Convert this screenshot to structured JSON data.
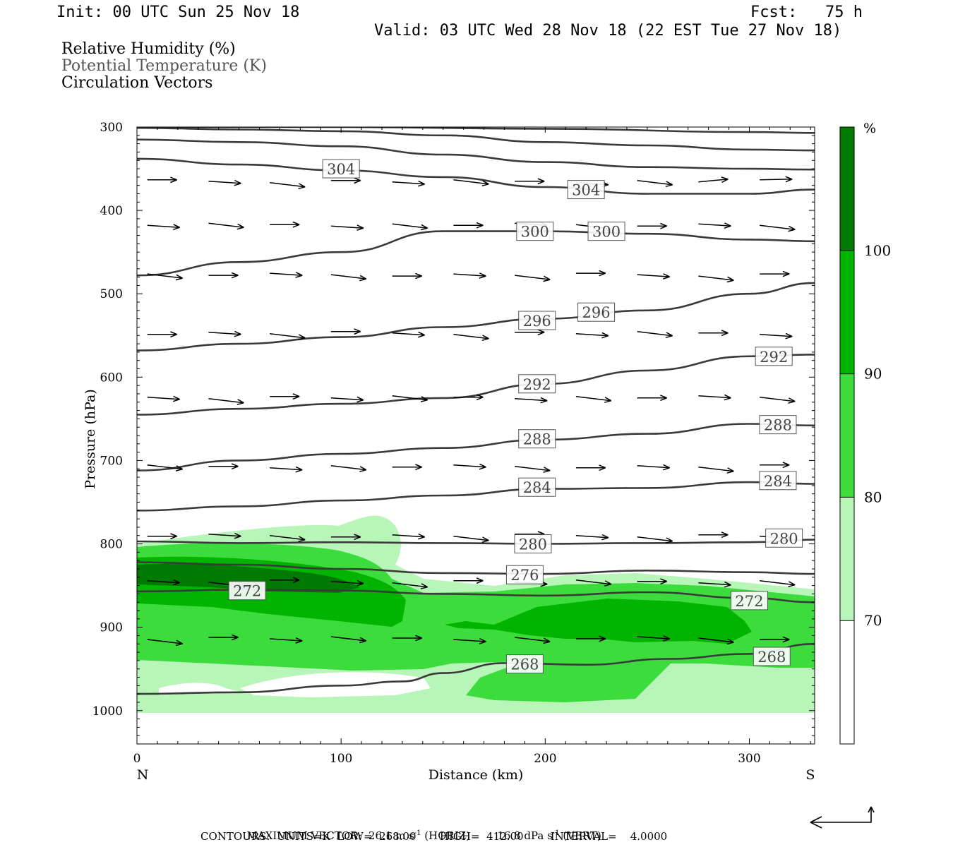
{
  "header": {
    "init": "Init: 00 UTC Sun 25 Nov 18",
    "fcst": "Fcst:   75 h",
    "valid": "Valid: 03 UTC Wed 28 Nov 18 (22 EST Tue 27 Nov 18)"
  },
  "legend": {
    "line1": "Relative Humidity (%)",
    "line2": "Potential Temperature (K)",
    "line3": "Circulation Vectors"
  },
  "chart_data": {
    "type": "cross-section",
    "xlabel": "Distance (km)",
    "ylabel": "Pressure (hPa)",
    "xlim": [
      0,
      332
    ],
    "ylim": [
      1040,
      300
    ],
    "x_ticks": [
      0,
      100,
      200,
      300
    ],
    "y_ticks": [
      300,
      400,
      500,
      600,
      700,
      800,
      900,
      1000
    ],
    "x_end_labels": {
      "left": "N",
      "right": "S"
    },
    "colorbar": {
      "unit": "%",
      "levels": [
        70,
        80,
        90,
        100
      ],
      "colors": [
        "#ffffff",
        "#b8f5b8",
        "#3ddc3d",
        "#00b400",
        "#007a00"
      ]
    },
    "theta_contours": [
      {
        "value": 268,
        "x": [
          0,
          50,
          100,
          130,
          150,
          180,
          220,
          260,
          300,
          332
        ],
        "p": [
          980,
          978,
          970,
          965,
          955,
          943,
          945,
          938,
          932,
          920
        ]
      },
      {
        "value": 272,
        "x": [
          0,
          50,
          100,
          150,
          200,
          250,
          300,
          332
        ],
        "p": [
          857,
          855,
          856,
          860,
          862,
          858,
          865,
          870
        ]
      },
      {
        "value": 276,
        "x": [
          0,
          50,
          100,
          150,
          200,
          250,
          300,
          332
        ],
        "p": [
          822,
          825,
          830,
          835,
          836,
          832,
          834,
          836
        ]
      },
      {
        "value": 280,
        "x": [
          0,
          50,
          100,
          150,
          200,
          250,
          300,
          332
        ],
        "p": [
          797,
          799,
          798,
          799,
          800,
          799,
          798,
          795
        ]
      },
      {
        "value": 284,
        "x": [
          0,
          50,
          100,
          150,
          200,
          250,
          300,
          332
        ],
        "p": [
          760,
          755,
          748,
          742,
          734,
          733,
          726,
          728
        ]
      },
      {
        "value": 288,
        "x": [
          0,
          50,
          100,
          150,
          200,
          250,
          300,
          332
        ],
        "p": [
          712,
          700,
          692,
          685,
          675,
          668,
          656,
          658
        ]
      },
      {
        "value": 292,
        "x": [
          0,
          50,
          100,
          150,
          200,
          250,
          300,
          332
        ],
        "p": [
          645,
          638,
          632,
          625,
          608,
          592,
          575,
          573
        ]
      },
      {
        "value": 296,
        "x": [
          0,
          50,
          100,
          150,
          200,
          250,
          300,
          332
        ],
        "p": [
          568,
          560,
          552,
          540,
          530,
          520,
          500,
          487
        ]
      },
      {
        "value": 300,
        "x": [
          0,
          50,
          100,
          150,
          200,
          250,
          300,
          332
        ],
        "p": [
          478,
          462,
          450,
          425,
          425,
          428,
          435,
          437
        ]
      },
      {
        "value": 304,
        "x": [
          0,
          50,
          100,
          150,
          200,
          250,
          300,
          332
        ],
        "p": [
          338,
          345,
          352,
          360,
          372,
          380,
          380,
          375
        ]
      },
      {
        "value": 308,
        "x": [
          0,
          50,
          100,
          150,
          200,
          250,
          300,
          332
        ],
        "p": [
          315,
          318,
          323,
          333,
          342,
          348,
          350,
          351
        ]
      },
      {
        "value": 312,
        "x": [
          0,
          50,
          100,
          150,
          200,
          250,
          300,
          332
        ],
        "p": [
          301,
          303,
          305,
          310,
          318,
          322,
          327,
          328
        ]
      },
      {
        "value": 316,
        "x": [
          0,
          100,
          200,
          300,
          332
        ],
        "p": [
          300,
          300,
          302,
          306,
          307
        ]
      }
    ],
    "contour_labels": [
      {
        "text": "304",
        "x": 100,
        "p": 350
      },
      {
        "text": "304",
        "x": 220,
        "p": 375
      },
      {
        "text": "300",
        "x": 195,
        "p": 425
      },
      {
        "text": "300",
        "x": 230,
        "p": 425
      },
      {
        "text": "296",
        "x": 196,
        "p": 532
      },
      {
        "text": "296",
        "x": 225,
        "p": 522
      },
      {
        "text": "292",
        "x": 312,
        "p": 575
      },
      {
        "text": "292",
        "x": 196,
        "p": 608
      },
      {
        "text": "288",
        "x": 314,
        "p": 657
      },
      {
        "text": "288",
        "x": 196,
        "p": 674
      },
      {
        "text": "284",
        "x": 314,
        "p": 724
      },
      {
        "text": "284",
        "x": 196,
        "p": 732
      },
      {
        "text": "280",
        "x": 317,
        "p": 793
      },
      {
        "text": "280",
        "x": 194,
        "p": 800
      },
      {
        "text": "276",
        "x": 190,
        "p": 837
      },
      {
        "text": "272",
        "x": 54,
        "p": 856
      },
      {
        "text": "272",
        "x": 300,
        "p": 868
      },
      {
        "text": "268",
        "x": 311,
        "p": 935
      },
      {
        "text": "268",
        "x": 190,
        "p": 944
      }
    ],
    "vector_levels_hPa": [
      365,
      417,
      477,
      547,
      624,
      707,
      790,
      845,
      913
    ],
    "vector_x_km": [
      12,
      42,
      72,
      102,
      132,
      162,
      192,
      222,
      252,
      282,
      312
    ],
    "max_vector_horiz": "26.1 m s-1",
    "max_vector_vert": "16.8 dPa s-1"
  },
  "footer": {
    "line1a": "MAXIMUM VECTOR:  26.1 m s",
    "line1b": " (HORIZ)",
    "line1c": "16.8 dPa s",
    "line1d": " (VERT)",
    "sup": "-1",
    "line2": "CONTOURS:  UNITS=K  LOW=  268.00       HIGH=  412.00        INTERVAL=    4.0000"
  }
}
